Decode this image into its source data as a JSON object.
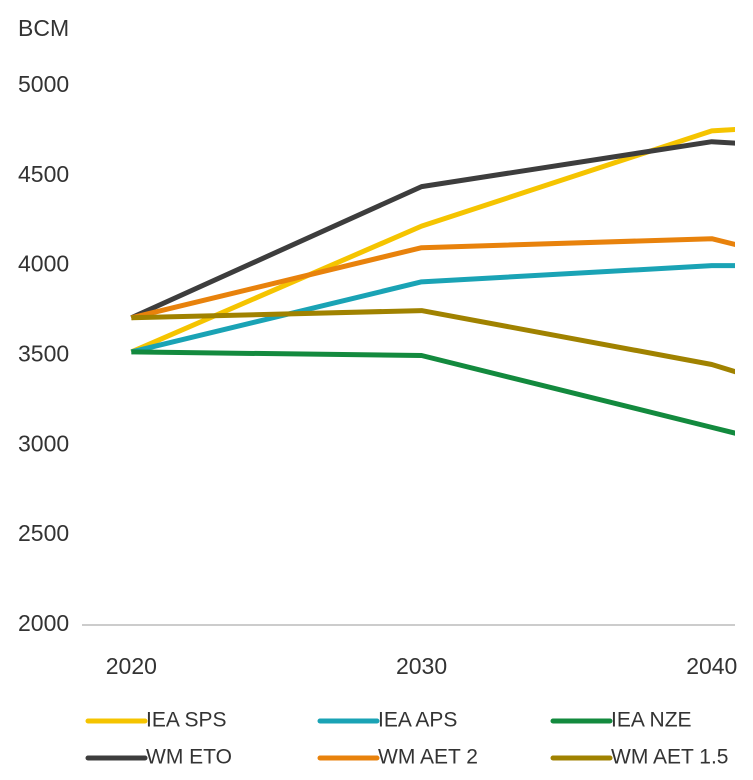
{
  "chart_data": {
    "type": "line",
    "y_label": "BCM",
    "x": [
      2020,
      2030,
      2040,
      2041
    ],
    "xlim": [
      2018.3,
      2040.8
    ],
    "xticks": [
      2020,
      2030,
      2040
    ],
    "ylim": [
      2000,
      5000
    ],
    "yticks": [
      2000,
      2500,
      3000,
      3500,
      4000,
      4500,
      5000
    ],
    "legend": "bottom",
    "series": [
      {
        "name": "IEA SPS",
        "color": "#f5c400",
        "values": [
          3520,
          4220,
          4750,
          4760
        ]
      },
      {
        "name": "IEA APS",
        "color": "#1aa3b5",
        "values": [
          3520,
          3910,
          4000,
          4000
        ]
      },
      {
        "name": "IEA NZE",
        "color": "#138a3e",
        "values": [
          3520,
          3500,
          3100,
          3060
        ]
      },
      {
        "name": "WM ETO",
        "color": "#3d3d3d",
        "values": [
          3710,
          4440,
          4690,
          4680
        ]
      },
      {
        "name": "WM AET 2",
        "color": "#e8820c",
        "values": [
          3710,
          4100,
          4150,
          4110
        ]
      },
      {
        "name": "WM AET 1.5",
        "color": "#a08200",
        "values": [
          3710,
          3750,
          3450,
          3400
        ]
      }
    ]
  }
}
